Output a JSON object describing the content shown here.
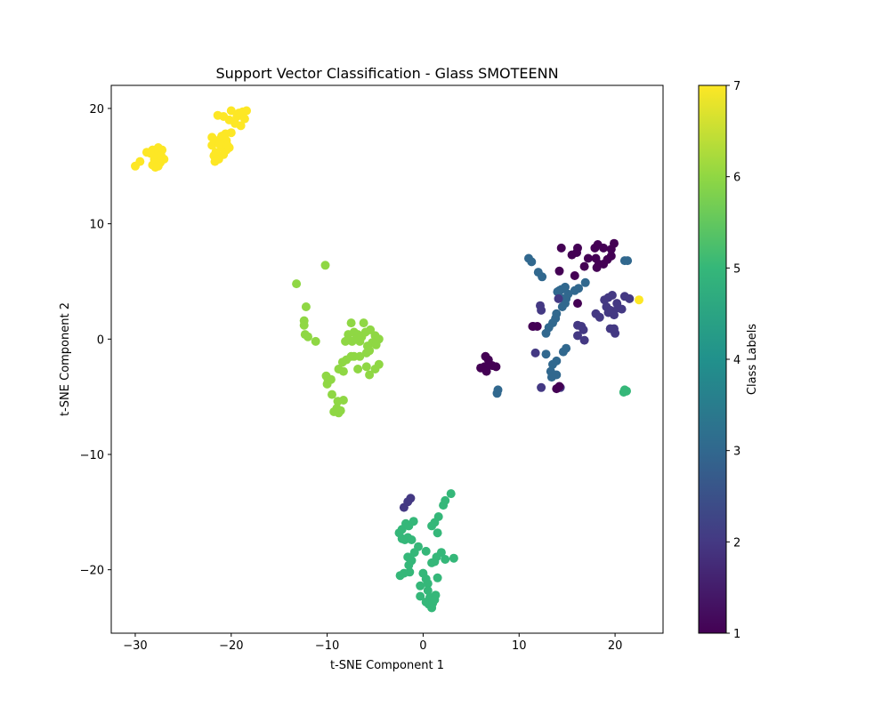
{
  "chart_data": {
    "type": "scatter",
    "title": "Support Vector Classification - Glass SMOTEENN",
    "xlabel": "t-SNE Component 1",
    "ylabel": "t-SNE Component 2",
    "xlim": [
      -32.5,
      25
    ],
    "ylim": [
      -25.5,
      22
    ],
    "xticks": [
      -30,
      -20,
      -10,
      0,
      10,
      20
    ],
    "yticks": [
      -20,
      -10,
      0,
      10,
      20
    ],
    "xtick_labels": [
      "−30",
      "−20",
      "−10",
      "0",
      "10",
      "20"
    ],
    "ytick_labels": [
      "−20",
      "−10",
      "0",
      "10",
      "20"
    ],
    "grid": false,
    "colorbar": {
      "label": "Class Labels",
      "min": 1,
      "max": 7,
      "ticks": [
        1,
        2,
        3,
        4,
        5,
        6,
        7
      ],
      "tick_labels": [
        "1",
        "2",
        "3",
        "4",
        "5",
        "6",
        "7"
      ],
      "colormap": "viridis",
      "colors": [
        "#440154",
        "#443983",
        "#31688e",
        "#21918c",
        "#35b779",
        "#90d743",
        "#fde725"
      ]
    },
    "class_colors": {
      "1": "#440154",
      "2": "#443983",
      "3": "#31688e",
      "5": "#35b779",
      "6": "#8fd744",
      "7": "#fde725"
    },
    "points": [
      [
        -30,
        15,
        7
      ],
      [
        -29.5,
        15.4,
        7
      ],
      [
        -28.8,
        16.2,
        7
      ],
      [
        -28.2,
        16.4,
        7
      ],
      [
        -27.6,
        16.6,
        7
      ],
      [
        -27.2,
        16.4,
        7
      ],
      [
        -28,
        15.6,
        7
      ],
      [
        -27.4,
        15.3,
        7
      ],
      [
        -27,
        15.6,
        7
      ],
      [
        -28.2,
        15.1,
        7
      ],
      [
        -27.6,
        15,
        7
      ],
      [
        -27.8,
        16,
        7
      ],
      [
        -28.4,
        16.1,
        7
      ],
      [
        -27.3,
        15.9,
        7
      ],
      [
        -27.9,
        14.9,
        7
      ],
      [
        -22,
        17.5,
        7
      ],
      [
        -21.5,
        17.2,
        7
      ],
      [
        -21,
        17.6,
        7
      ],
      [
        -20.5,
        17.2,
        7
      ],
      [
        -20,
        17.9,
        7
      ],
      [
        -21.6,
        16.2,
        7
      ],
      [
        -21,
        16.6,
        7
      ],
      [
        -20.5,
        16.4,
        7
      ],
      [
        -21.8,
        15.9,
        7
      ],
      [
        -21.3,
        15.6,
        7
      ],
      [
        -20.8,
        16,
        7
      ],
      [
        -22,
        16.8,
        7
      ],
      [
        -21.2,
        16.9,
        7
      ],
      [
        -20.2,
        16.6,
        7
      ],
      [
        -21.4,
        19.4,
        7
      ],
      [
        -20.8,
        19.3,
        7
      ],
      [
        -20,
        19.8,
        7
      ],
      [
        -19.4,
        19.3,
        7
      ],
      [
        -18.8,
        19.7,
        7
      ],
      [
        -18.4,
        19.8,
        7
      ],
      [
        -19,
        18.5,
        7
      ],
      [
        -19.6,
        18.7,
        7
      ],
      [
        -18.6,
        19.1,
        7
      ],
      [
        -20.2,
        19,
        7
      ],
      [
        -19.2,
        19.6,
        7
      ],
      [
        -20.6,
        17.8,
        7
      ],
      [
        -20.4,
        16.8,
        7
      ],
      [
        -21.7,
        15.4,
        7
      ],
      [
        22.5,
        3.4,
        7
      ],
      [
        -10.2,
        6.4,
        6
      ],
      [
        -13.2,
        4.8,
        6
      ],
      [
        -12.2,
        2.8,
        6
      ],
      [
        -12.4,
        1.6,
        6
      ],
      [
        -12.4,
        1.2,
        6
      ],
      [
        -12.3,
        0.4,
        6
      ],
      [
        -12,
        0.2,
        6
      ],
      [
        -11.2,
        -0.2,
        6
      ],
      [
        -7.5,
        1.4,
        6
      ],
      [
        -6.2,
        1.4,
        6
      ],
      [
        -7.8,
        0.4,
        6
      ],
      [
        -7.2,
        0.6,
        6
      ],
      [
        -6.8,
        0.4,
        6
      ],
      [
        -6.4,
        0.2,
        6
      ],
      [
        -6,
        0.6,
        6
      ],
      [
        -5.5,
        0.8,
        6
      ],
      [
        -5,
        0.3,
        6
      ],
      [
        -4.6,
        0,
        6
      ],
      [
        -5.3,
        -0.3,
        6
      ],
      [
        -6.6,
        -0.2,
        6
      ],
      [
        -7.4,
        -0.2,
        6
      ],
      [
        -8.1,
        -0.2,
        6
      ],
      [
        -5.8,
        -0.6,
        6
      ],
      [
        -4.9,
        -0.5,
        6
      ],
      [
        -7,
        0,
        6
      ],
      [
        -7.5,
        -1.5,
        6
      ],
      [
        -8,
        -1.8,
        6
      ],
      [
        -8.4,
        -2,
        6
      ],
      [
        -7.2,
        -1.5,
        6
      ],
      [
        -6.6,
        -1.5,
        6
      ],
      [
        -5.9,
        -1.2,
        6
      ],
      [
        -5.6,
        -1,
        6
      ],
      [
        -4.6,
        -2.2,
        6
      ],
      [
        -5,
        -2.6,
        6
      ],
      [
        -5.9,
        -2.4,
        6
      ],
      [
        -6.8,
        -2.6,
        6
      ],
      [
        -8.3,
        -2.8,
        6
      ],
      [
        -8.8,
        -2.6,
        6
      ],
      [
        -5.6,
        -3.1,
        6
      ],
      [
        -9.9,
        -3.6,
        6
      ],
      [
        -9.6,
        -3.5,
        6
      ],
      [
        -10,
        -3.9,
        6
      ],
      [
        -9.5,
        -4.8,
        6
      ],
      [
        -8.9,
        -5.4,
        6
      ],
      [
        -8.3,
        -5.3,
        6
      ],
      [
        -9,
        -6,
        6
      ],
      [
        -8.8,
        -6.4,
        6
      ],
      [
        -8.6,
        -6.2,
        6
      ],
      [
        -9.3,
        -6.3,
        6
      ],
      [
        -10.1,
        -3.2,
        6
      ],
      [
        -2.2,
        -16.5,
        5
      ],
      [
        -2.5,
        -16.8,
        5
      ],
      [
        -1.8,
        -16,
        5
      ],
      [
        -1.5,
        -16.2,
        5
      ],
      [
        -1,
        -15.8,
        5
      ],
      [
        -2.2,
        -17.3,
        5
      ],
      [
        -1.9,
        -17.4,
        5
      ],
      [
        -1.6,
        -17.2,
        5
      ],
      [
        -1.2,
        -17.4,
        5
      ],
      [
        -0.5,
        -18,
        5
      ],
      [
        -0.9,
        -18.5,
        5
      ],
      [
        -1.6,
        -18.9,
        5
      ],
      [
        -1.2,
        -19.2,
        5
      ],
      [
        -1.5,
        -19.6,
        5
      ],
      [
        -1.4,
        -20.2,
        5
      ],
      [
        -2.4,
        -20.5,
        5
      ],
      [
        -2,
        -20.3,
        5
      ],
      [
        0.3,
        -18.4,
        5
      ],
      [
        0.9,
        -19.4,
        5
      ],
      [
        1.4,
        -18.9,
        5
      ],
      [
        1.9,
        -18.5,
        5
      ],
      [
        2.3,
        -19.1,
        5
      ],
      [
        1.2,
        -19.3,
        5
      ],
      [
        3.2,
        -19,
        5
      ],
      [
        0.9,
        -16.2,
        5
      ],
      [
        1.2,
        -15.9,
        5
      ],
      [
        1.6,
        -15.4,
        5
      ],
      [
        2.1,
        -14.4,
        5
      ],
      [
        2.3,
        -14,
        5
      ],
      [
        2.9,
        -13.4,
        5
      ],
      [
        1.5,
        -16.8,
        5
      ],
      [
        0,
        -20.3,
        5
      ],
      [
        0.3,
        -20.8,
        5
      ],
      [
        0.5,
        -21.2,
        5
      ],
      [
        1.5,
        -20.7,
        5
      ],
      [
        -0.3,
        -21.4,
        5
      ],
      [
        0.5,
        -21.8,
        5
      ],
      [
        0.7,
        -22.4,
        5
      ],
      [
        1.3,
        -22.2,
        5
      ],
      [
        -0.3,
        -22.3,
        5
      ],
      [
        0.3,
        -22.8,
        5
      ],
      [
        0.6,
        -23,
        5
      ],
      [
        0.9,
        -23.3,
        5
      ],
      [
        1,
        -22.9,
        5
      ],
      [
        1.2,
        -22.6,
        5
      ],
      [
        21,
        -4.4,
        5
      ],
      [
        21.2,
        -4.5,
        5
      ],
      [
        20.9,
        -4.6,
        5
      ],
      [
        -1.3,
        -13.8,
        2
      ],
      [
        -1.6,
        -14.1,
        2
      ],
      [
        -2,
        -14.6,
        2
      ],
      [
        11,
        7,
        3
      ],
      [
        11.3,
        6.7,
        3
      ],
      [
        12,
        5.8,
        3
      ],
      [
        12.4,
        5.4,
        3
      ],
      [
        14,
        4.1,
        3
      ],
      [
        14.4,
        4.3,
        3
      ],
      [
        14.8,
        4.5,
        3
      ],
      [
        15.1,
        3.9,
        3
      ],
      [
        14.3,
        3.6,
        3
      ],
      [
        14.9,
        3.5,
        3
      ],
      [
        15.8,
        4.2,
        3
      ],
      [
        16.2,
        4.4,
        3
      ],
      [
        16.9,
        4.9,
        3
      ],
      [
        13.9,
        2.2,
        3
      ],
      [
        13.8,
        1.8,
        3
      ],
      [
        13.5,
        1.4,
        3
      ],
      [
        13.1,
        1,
        3
      ],
      [
        12.8,
        0.5,
        3
      ],
      [
        14.5,
        2.8,
        3
      ],
      [
        14.6,
        -1.1,
        3
      ],
      [
        14.9,
        -0.8,
        3
      ],
      [
        13.9,
        -1.9,
        3
      ],
      [
        13.5,
        -2.2,
        3
      ],
      [
        13.3,
        -2.8,
        3
      ],
      [
        13.4,
        -3.3,
        3
      ],
      [
        13.9,
        -3.1,
        3
      ],
      [
        12.8,
        -1.3,
        3
      ],
      [
        14.8,
        3.1,
        3
      ],
      [
        7.8,
        -4.4,
        3
      ],
      [
        7.7,
        -4.7,
        3
      ],
      [
        21,
        6.8,
        3
      ],
      [
        21.3,
        6.8,
        3
      ],
      [
        14.2,
        4.2,
        3
      ],
      [
        12.2,
        2.9,
        2
      ],
      [
        12.3,
        2.5,
        2
      ],
      [
        14.1,
        3.5,
        2
      ],
      [
        11.5,
        1.1,
        2
      ],
      [
        11.7,
        -1.2,
        2
      ],
      [
        12.3,
        -4.2,
        2
      ],
      [
        14.3,
        -4.2,
        2
      ],
      [
        16.1,
        1.2,
        2
      ],
      [
        16.5,
        1.1,
        2
      ],
      [
        16.7,
        0.8,
        2
      ],
      [
        16.1,
        0.3,
        2
      ],
      [
        16.8,
        -0.1,
        2
      ],
      [
        18,
        2.2,
        2
      ],
      [
        18.4,
        1.9,
        2
      ],
      [
        18.9,
        3.4,
        2
      ],
      [
        19.3,
        3.6,
        2
      ],
      [
        19.7,
        3.8,
        2
      ],
      [
        19.1,
        2.8,
        2
      ],
      [
        19.5,
        2.5,
        2
      ],
      [
        20.3,
        2.7,
        2
      ],
      [
        19.9,
        2.1,
        2
      ],
      [
        20.7,
        2.6,
        2
      ],
      [
        21,
        3.7,
        2
      ],
      [
        21.5,
        3.5,
        2
      ],
      [
        19.5,
        0.9,
        2
      ],
      [
        20,
        0.5,
        2
      ],
      [
        19.9,
        0.9,
        2
      ],
      [
        19.3,
        2.3,
        2
      ],
      [
        20.2,
        3.1,
        2
      ],
      [
        14.4,
        7.9,
        1
      ],
      [
        15.5,
        7.3,
        1
      ],
      [
        16.1,
        7.9,
        1
      ],
      [
        16,
        7.5,
        1
      ],
      [
        17.2,
        7,
        1
      ],
      [
        17.9,
        7.9,
        1
      ],
      [
        18.2,
        8.2,
        1
      ],
      [
        18.8,
        7.9,
        1
      ],
      [
        19.6,
        7.8,
        1
      ],
      [
        19.9,
        8.3,
        1
      ],
      [
        18,
        7,
        1
      ],
      [
        18.3,
        6.5,
        1
      ],
      [
        18.1,
        6.2,
        1
      ],
      [
        18.8,
        6.5,
        1
      ],
      [
        19.2,
        6.9,
        1
      ],
      [
        19.6,
        7.2,
        1
      ],
      [
        16.8,
        6.3,
        1
      ],
      [
        15.8,
        5.5,
        1
      ],
      [
        14.2,
        5.9,
        1
      ],
      [
        16.1,
        3.1,
        1
      ],
      [
        11.9,
        1.1,
        1
      ],
      [
        11.4,
        1.1,
        1
      ],
      [
        14.2,
        -4.1,
        1
      ],
      [
        13.9,
        -4.3,
        1
      ],
      [
        6.5,
        -1.5,
        1
      ],
      [
        6.8,
        -1.8,
        1
      ],
      [
        7.2,
        -2.3,
        1
      ],
      [
        6.4,
        -2.4,
        1
      ],
      [
        6,
        -2.5,
        1
      ],
      [
        6.6,
        -2.8,
        1
      ],
      [
        6.9,
        -2.2,
        1
      ],
      [
        7.6,
        -2.4,
        1
      ]
    ]
  }
}
